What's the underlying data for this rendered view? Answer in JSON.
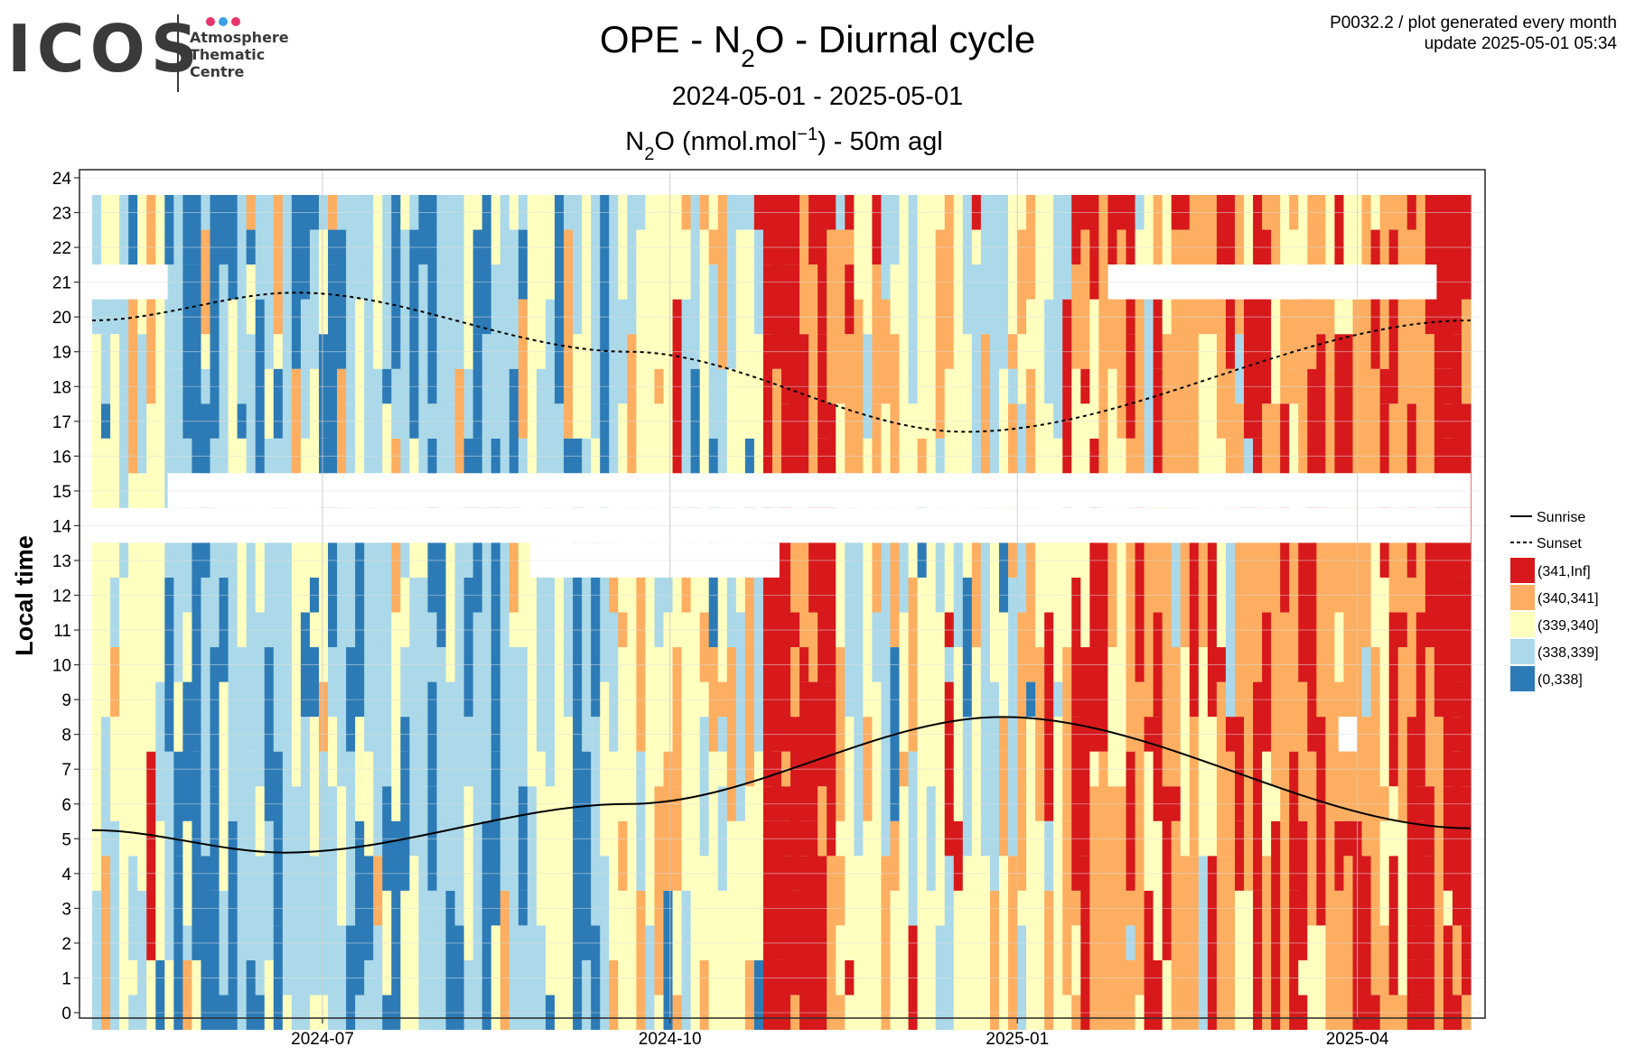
{
  "header": {
    "logo_word": "ICOS",
    "logo_subtitle": "Atmosphere\nThematic\nCentre",
    "logo_dot_colors": [
      "#e8356d",
      "#3aa0e8",
      "#e8356d"
    ],
    "corner_line1": "P0032.2 / plot generated every month",
    "corner_line2": "update  2025-05-01 05:34"
  },
  "chart_data": {
    "type": "heatmap",
    "title": "OPE - N2O - Diurnal cycle",
    "title_parts": {
      "before": "OPE - N",
      "sub": "2",
      "after": "O - Diurnal cycle"
    },
    "subtitle": "2024-05-01 - 2025-05-01",
    "measurement_label": "N2O (nmol.mol−1) - 50m agl",
    "measurement_parts": {
      "n": "N",
      "sub": "2",
      "mid": "O (nmol.mol",
      "sup": "−1",
      "end": ") - 50m agl"
    },
    "xlabel": "",
    "ylabel": "Local time",
    "x_range": [
      "2024-05-01",
      "2025-05-01"
    ],
    "x_ticks": [
      "2024-07",
      "2024-10",
      "2025-01",
      "2025-04"
    ],
    "y_range": [
      0,
      24
    ],
    "y_ticks": [
      0,
      1,
      2,
      3,
      4,
      5,
      6,
      7,
      8,
      9,
      10,
      11,
      12,
      13,
      14,
      15,
      16,
      17,
      18,
      19,
      20,
      21,
      22,
      23,
      24
    ],
    "grid": true,
    "legend_position": "right",
    "legend": {
      "lines": [
        {
          "label": "Sunrise",
          "style": "solid"
        },
        {
          "label": "Sunset",
          "style": "dotted"
        }
      ],
      "bins": [
        {
          "label": "(341,Inf]",
          "color": "#d7191c"
        },
        {
          "label": "(340,341]",
          "color": "#fdae61"
        },
        {
          "label": "(339,340]",
          "color": "#ffffbf"
        },
        {
          "label": "(338,339]",
          "color": "#abd9e9"
        },
        {
          "label": "(0,338]",
          "color": "#2c7bb6"
        }
      ]
    },
    "sunrise": [
      {
        "date": "2024-05-01",
        "hour": 5.25
      },
      {
        "date": "2024-06-21",
        "hour": 4.6
      },
      {
        "date": "2024-09-20",
        "hour": 6.0
      },
      {
        "date": "2024-12-28",
        "hour": 8.5
      },
      {
        "date": "2025-05-01",
        "hour": 5.3
      }
    ],
    "sunset": [
      {
        "date": "2024-05-01",
        "hour": 19.9
      },
      {
        "date": "2024-06-24",
        "hour": 20.7
      },
      {
        "date": "2024-09-20",
        "hour": 19.0
      },
      {
        "date": "2024-12-18",
        "hour": 16.7
      },
      {
        "date": "2025-05-01",
        "hour": 19.9
      }
    ],
    "missing_periods": [
      {
        "start": "2024-05-01",
        "end": "2024-05-21",
        "hour_from": 21,
        "hour_to": 22
      },
      {
        "start": "2024-05-21",
        "end": "2025-05-01",
        "hour_from": 15,
        "hour_to": 16
      },
      {
        "start": "2024-05-01",
        "end": "2025-05-01",
        "hour_from": 14,
        "hour_to": 15
      },
      {
        "start": "2024-08-25",
        "end": "2024-10-30",
        "hour_from": 13,
        "hour_to": 14
      },
      {
        "start": "2025-01-25",
        "end": "2025-03-10",
        "hour_from": 21,
        "hour_to": 22
      },
      {
        "start": "2025-03-10",
        "end": "2025-04-22",
        "hour_from": 21,
        "hour_to": 22
      },
      {
        "start": "2025-03-27",
        "end": "2025-04-01",
        "hour_from": 8,
        "hour_to": 9
      }
    ],
    "columns": [
      {
        "start": "2024-05-01",
        "end": "2024-05-20",
        "prevailing_bin": "(339,340]"
      },
      {
        "start": "2024-05-20",
        "end": "2024-07-25",
        "prevailing_bin": "(338,339]"
      },
      {
        "start": "2024-07-25",
        "end": "2024-09-15",
        "prevailing_bin": "(338,339]"
      },
      {
        "start": "2024-09-15",
        "end": "2024-10-25",
        "prevailing_bin": "(339,340]"
      },
      {
        "start": "2024-10-25",
        "end": "2024-11-15",
        "prevailing_bin": "(341,Inf]"
      },
      {
        "start": "2024-11-15",
        "end": "2024-12-20",
        "prevailing_bin": "(339,340]"
      },
      {
        "start": "2024-12-20",
        "end": "2025-01-15",
        "prevailing_bin": "(339,340]"
      },
      {
        "start": "2025-01-15",
        "end": "2025-04-15",
        "prevailing_bin": "(340,341]"
      },
      {
        "start": "2025-04-15",
        "end": "2025-05-01",
        "prevailing_bin": "(341,Inf]"
      }
    ]
  }
}
